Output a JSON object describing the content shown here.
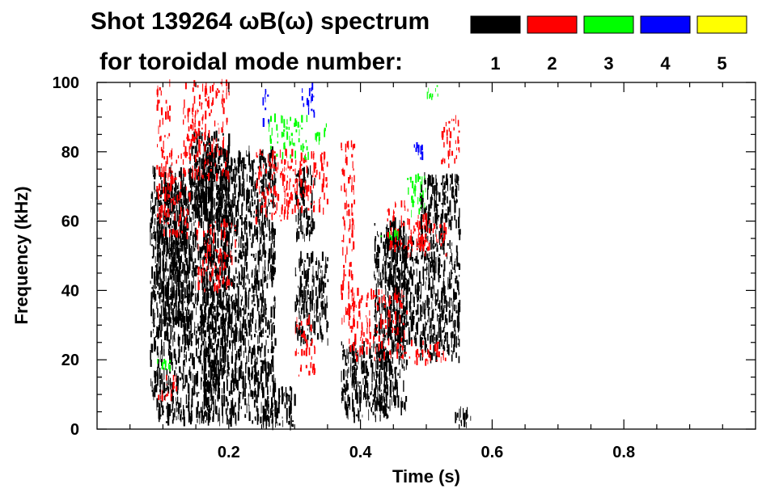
{
  "chart_data": {
    "type": "scatter",
    "title_line1": "Shot 139264 ωB(ω) spectrum",
    "title_line2": "for toroidal mode number:",
    "xlabel": "Time (s)",
    "ylabel": "Frequency (kHz)",
    "xlim": [
      0.0,
      1.0
    ],
    "ylim": [
      0,
      100
    ],
    "x_ticks": [
      0.2,
      0.4,
      0.6,
      0.8
    ],
    "x_tick_labels": [
      "0.2",
      "0.4",
      "0.6",
      "0.8"
    ],
    "y_ticks": [
      0,
      20,
      40,
      60,
      80,
      100
    ],
    "y_tick_labels": [
      "0",
      "20",
      "40",
      "60",
      "80",
      "100"
    ],
    "legend": {
      "placement": "top-right",
      "entries": [
        {
          "label": "1",
          "color": "#000000"
        },
        {
          "label": "2",
          "color": "#ff0000"
        },
        {
          "label": "3",
          "color": "#00ff00"
        },
        {
          "label": "4",
          "color": "#0000ff"
        },
        {
          "label": "5",
          "color": "#ffff00"
        }
      ]
    },
    "series": [
      {
        "name": "1",
        "color": "#000000",
        "regions": [
          {
            "t": [
              0.09,
              0.14
            ],
            "f": [
              30,
              70
            ]
          },
          {
            "t": [
              0.08,
              0.2
            ],
            "f": [
              10,
              75
            ]
          },
          {
            "t": [
              0.09,
              0.17
            ],
            "f": [
              2,
              10
            ]
          },
          {
            "t": [
              0.14,
              0.2
            ],
            "f": [
              60,
              85
            ]
          },
          {
            "t": [
              0.16,
              0.27
            ],
            "f": [
              2,
              80
            ]
          },
          {
            "t": [
              0.25,
              0.3
            ],
            "f": [
              1,
              12
            ]
          },
          {
            "t": [
              0.3,
              0.33
            ],
            "f": [
              55,
              75
            ]
          },
          {
            "t": [
              0.3,
              0.35
            ],
            "f": [
              25,
              50
            ]
          },
          {
            "t": [
              0.37,
              0.44
            ],
            "f": [
              3,
              25
            ]
          },
          {
            "t": [
              0.42,
              0.47
            ],
            "f": [
              5,
              60
            ]
          },
          {
            "t": [
              0.44,
              0.49
            ],
            "f": [
              25,
              55
            ]
          },
          {
            "t": [
              0.49,
              0.55
            ],
            "f": [
              20,
              73
            ]
          },
          {
            "t": [
              0.54,
              0.57
            ],
            "f": [
              1,
              5
            ]
          }
        ]
      },
      {
        "name": "2",
        "color": "#ff0000",
        "regions": [
          {
            "t": [
              0.09,
              0.11
            ],
            "f": [
              60,
              100
            ]
          },
          {
            "t": [
              0.1,
              0.14
            ],
            "f": [
              55,
              80
            ]
          },
          {
            "t": [
              0.13,
              0.2
            ],
            "f": [
              72,
              100
            ]
          },
          {
            "t": [
              0.09,
              0.12
            ],
            "f": [
              8,
              15
            ]
          },
          {
            "t": [
              0.15,
              0.21
            ],
            "f": [
              40,
              60
            ]
          },
          {
            "t": [
              0.24,
              0.29
            ],
            "f": [
              60,
              80
            ]
          },
          {
            "t": [
              0.28,
              0.35
            ],
            "f": [
              62,
              80
            ]
          },
          {
            "t": [
              0.3,
              0.33
            ],
            "f": [
              15,
              32
            ]
          },
          {
            "t": [
              0.37,
              0.39
            ],
            "f": [
              30,
              83
            ]
          },
          {
            "t": [
              0.38,
              0.47
            ],
            "f": [
              20,
              40
            ]
          },
          {
            "t": [
              0.44,
              0.5
            ],
            "f": [
              52,
              65
            ]
          },
          {
            "t": [
              0.47,
              0.53
            ],
            "f": [
              50,
              60
            ]
          },
          {
            "t": [
              0.47,
              0.53
            ],
            "f": [
              19,
              25
            ]
          },
          {
            "t": [
              0.52,
              0.55
            ],
            "f": [
              75,
              90
            ]
          }
        ]
      },
      {
        "name": "3",
        "color": "#00ff00",
        "regions": [
          {
            "t": [
              0.26,
              0.32
            ],
            "f": [
              78,
              90
            ]
          },
          {
            "t": [
              0.33,
              0.35
            ],
            "f": [
              83,
              88
            ]
          },
          {
            "t": [
              0.09,
              0.11
            ],
            "f": [
              17,
              20
            ]
          },
          {
            "t": [
              0.47,
              0.5
            ],
            "f": [
              62,
              73
            ]
          },
          {
            "t": [
              0.43,
              0.46
            ],
            "f": [
              55,
              57
            ]
          },
          {
            "t": [
              0.5,
              0.52
            ],
            "f": [
              95,
              99
            ]
          }
        ]
      },
      {
        "name": "4",
        "color": "#0000ff",
        "regions": [
          {
            "t": [
              0.25,
              0.26
            ],
            "f": [
              88,
              99
            ]
          },
          {
            "t": [
              0.31,
              0.33
            ],
            "f": [
              90,
              99
            ]
          },
          {
            "t": [
              0.48,
              0.5
            ],
            "f": [
              78,
              82
            ]
          }
        ]
      }
    ]
  }
}
